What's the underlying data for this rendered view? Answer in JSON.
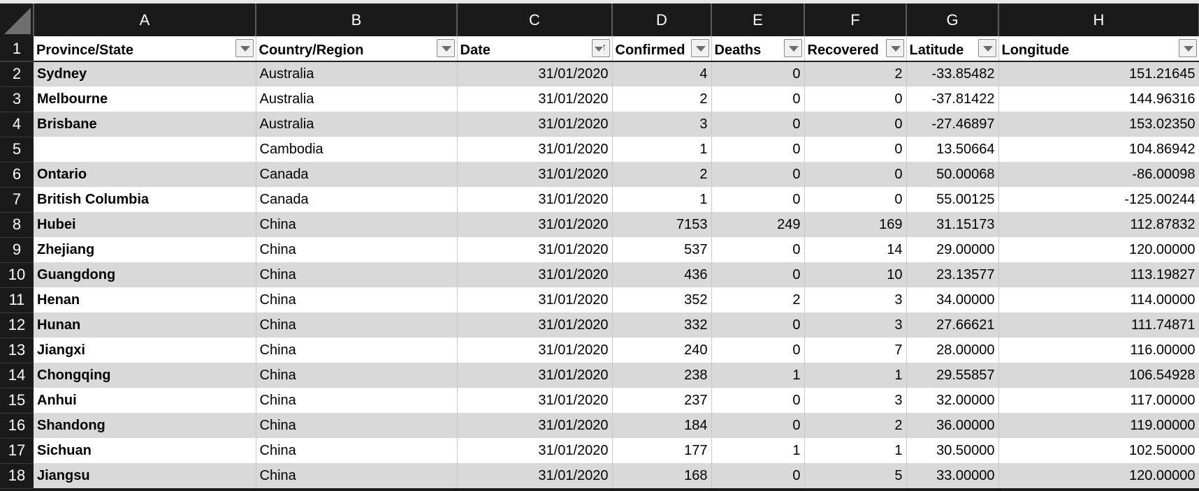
{
  "columns": [
    "A",
    "B",
    "C",
    "D",
    "E",
    "F",
    "G",
    "H"
  ],
  "headers": [
    "Province/State",
    "Country/Region",
    "Date",
    "Confirmed",
    "Deaths",
    "Recovered",
    "Latitude",
    "Longitude"
  ],
  "sorted_column": "Date",
  "rows": [
    {
      "n": "2",
      "cells": [
        "Sydney",
        "Australia",
        "31/01/2020",
        "4",
        "0",
        "2",
        "-33.85482",
        "151.21645"
      ]
    },
    {
      "n": "3",
      "cells": [
        "Melbourne",
        "Australia",
        "31/01/2020",
        "2",
        "0",
        "0",
        "-37.81422",
        "144.96316"
      ]
    },
    {
      "n": "4",
      "cells": [
        "Brisbane",
        "Australia",
        "31/01/2020",
        "3",
        "0",
        "0",
        "-27.46897",
        "153.02350"
      ]
    },
    {
      "n": "5",
      "cells": [
        "",
        "Cambodia",
        "31/01/2020",
        "1",
        "0",
        "0",
        "13.50664",
        "104.86942"
      ]
    },
    {
      "n": "6",
      "cells": [
        "Ontario",
        "Canada",
        "31/01/2020",
        "2",
        "0",
        "0",
        "50.00068",
        "-86.00098"
      ]
    },
    {
      "n": "7",
      "cells": [
        "British Columbia",
        "Canada",
        "31/01/2020",
        "1",
        "0",
        "0",
        "55.00125",
        "-125.00244"
      ]
    },
    {
      "n": "8",
      "cells": [
        "Hubei",
        "China",
        "31/01/2020",
        "7153",
        "249",
        "169",
        "31.15173",
        "112.87832"
      ]
    },
    {
      "n": "9",
      "cells": [
        "Zhejiang",
        "China",
        "31/01/2020",
        "537",
        "0",
        "14",
        "29.00000",
        "120.00000"
      ]
    },
    {
      "n": "10",
      "cells": [
        "Guangdong",
        "China",
        "31/01/2020",
        "436",
        "0",
        "10",
        "23.13577",
        "113.19827"
      ]
    },
    {
      "n": "11",
      "cells": [
        "Henan",
        "China",
        "31/01/2020",
        "352",
        "2",
        "3",
        "34.00000",
        "114.00000"
      ]
    },
    {
      "n": "12",
      "cells": [
        "Hunan",
        "China",
        "31/01/2020",
        "332",
        "0",
        "3",
        "27.66621",
        "111.74871"
      ]
    },
    {
      "n": "13",
      "cells": [
        "Jiangxi",
        "China",
        "31/01/2020",
        "240",
        "0",
        "7",
        "28.00000",
        "116.00000"
      ]
    },
    {
      "n": "14",
      "cells": [
        "Chongqing",
        "China",
        "31/01/2020",
        "238",
        "1",
        "1",
        "29.55857",
        "106.54928"
      ]
    },
    {
      "n": "15",
      "cells": [
        "Anhui",
        "China",
        "31/01/2020",
        "237",
        "0",
        "3",
        "32.00000",
        "117.00000"
      ]
    },
    {
      "n": "16",
      "cells": [
        "Shandong",
        "China",
        "31/01/2020",
        "184",
        "0",
        "2",
        "36.00000",
        "119.00000"
      ]
    },
    {
      "n": "17",
      "cells": [
        "Sichuan",
        "China",
        "31/01/2020",
        "177",
        "1",
        "1",
        "30.50000",
        "102.50000"
      ]
    },
    {
      "n": "18",
      "cells": [
        "Jiangsu",
        "China",
        "31/01/2020",
        "168",
        "0",
        "5",
        "33.00000",
        "120.00000"
      ]
    }
  ],
  "header_row_number": "1",
  "colors": {
    "stripe": "#d9d9d9",
    "header_bg": "#1a1a1a",
    "white": "#ffffff"
  }
}
